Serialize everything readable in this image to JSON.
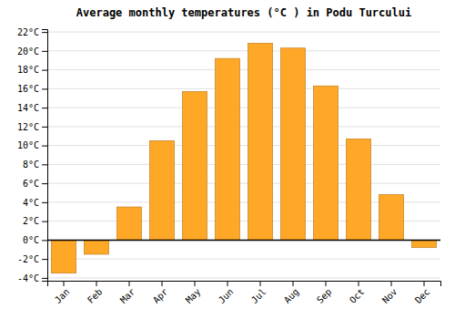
{
  "chart_data": {
    "type": "bar",
    "title": "Average monthly temperatures (°C ) in Podu Turcului",
    "categories": [
      "Jan",
      "Feb",
      "Mar",
      "Apr",
      "May",
      "Jun",
      "Jul",
      "Aug",
      "Sep",
      "Oct",
      "Nov",
      "Dec"
    ],
    "values": [
      -3.5,
      -1.5,
      3.5,
      10.5,
      15.7,
      19.2,
      20.8,
      20.3,
      16.3,
      10.7,
      4.8,
      -0.8
    ],
    "color": "#FFA726",
    "ylim": [
      -4.3,
      22.3
    ],
    "yticks": [
      {
        "value": -4,
        "label": "-4°C"
      },
      {
        "value": -2,
        "label": "-2°C"
      },
      {
        "value": 0,
        "label": "0°C"
      },
      {
        "value": 2,
        "label": "2°C"
      },
      {
        "value": 4,
        "label": "4°C"
      },
      {
        "value": 6,
        "label": "6°C"
      },
      {
        "value": 8,
        "label": "8°C"
      },
      {
        "value": 10,
        "label": "10°C"
      },
      {
        "value": 12,
        "label": "12°C"
      },
      {
        "value": 14,
        "label": "14°C"
      },
      {
        "value": 16,
        "label": "16°C"
      },
      {
        "value": 18,
        "label": "18°C"
      },
      {
        "value": 20,
        "label": "20°C"
      },
      {
        "value": 22,
        "label": "22°C"
      }
    ],
    "grid": true
  }
}
